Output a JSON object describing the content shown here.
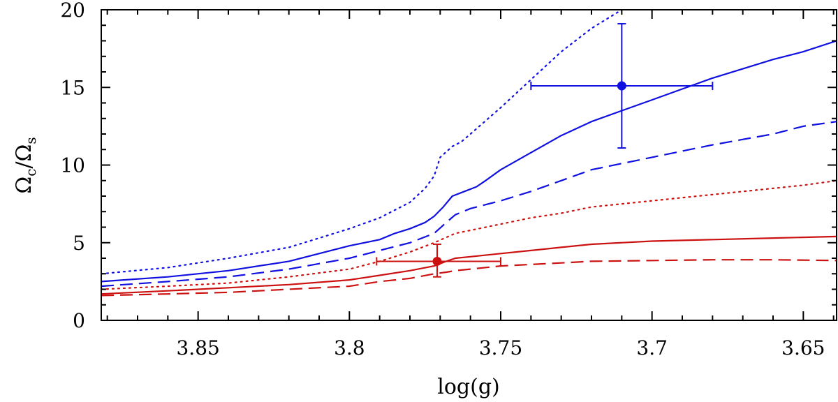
{
  "chart_data": {
    "type": "line",
    "title": "",
    "xlabel": "log(g)",
    "ylabel": "Ω_c/Ω_s",
    "ylabel_parts": {
      "num": "Ω",
      "num_sub": "c",
      "slash": "/",
      "den": "Ω",
      "den_sub": "s"
    },
    "xlim": [
      3.882,
      3.639
    ],
    "ylim": [
      0,
      20
    ],
    "x_ticks": [
      3.85,
      3.8,
      3.75,
      3.7,
      3.65
    ],
    "x_tick_labels": [
      "3.85",
      "3.8",
      "3.75",
      "3.7",
      "3.65"
    ],
    "y_ticks": [
      0,
      5,
      10,
      15,
      20
    ],
    "y_tick_labels": [
      "0",
      "5",
      "10",
      "15",
      "20"
    ],
    "grid": false,
    "colors": {
      "blue": "#1010e0",
      "red": "#cc1111",
      "axis": "#000000"
    },
    "series": [
      {
        "name": "blue-dotted",
        "color": "#1010e0",
        "style": "dotted",
        "x": [
          3.882,
          3.86,
          3.84,
          3.82,
          3.81,
          3.8,
          3.79,
          3.78,
          3.775,
          3.772,
          3.77,
          3.766,
          3.763,
          3.76,
          3.75,
          3.74,
          3.73,
          3.72,
          3.71
        ],
        "y": [
          3.0,
          3.4,
          4.0,
          4.7,
          5.3,
          5.9,
          6.6,
          7.6,
          8.5,
          9.3,
          10.5,
          11.2,
          11.5,
          12.0,
          13.7,
          15.5,
          17.3,
          18.8,
          20.0
        ]
      },
      {
        "name": "blue-solid",
        "color": "#1010e0",
        "style": "solid",
        "x": [
          3.882,
          3.86,
          3.84,
          3.82,
          3.81,
          3.8,
          3.79,
          3.785,
          3.78,
          3.775,
          3.772,
          3.769,
          3.766,
          3.762,
          3.758,
          3.755,
          3.75,
          3.74,
          3.73,
          3.72,
          3.71,
          3.7,
          3.69,
          3.68,
          3.67,
          3.66,
          3.65,
          3.639
        ],
        "y": [
          2.5,
          2.8,
          3.2,
          3.8,
          4.3,
          4.8,
          5.2,
          5.6,
          5.9,
          6.3,
          6.7,
          7.3,
          8.0,
          8.3,
          8.6,
          9.0,
          9.7,
          10.8,
          11.9,
          12.8,
          13.5,
          14.2,
          14.9,
          15.6,
          16.2,
          16.8,
          17.3,
          18.0
        ]
      },
      {
        "name": "blue-dashed",
        "color": "#1010e0",
        "style": "dashed",
        "x": [
          3.882,
          3.86,
          3.84,
          3.82,
          3.8,
          3.79,
          3.78,
          3.772,
          3.768,
          3.765,
          3.76,
          3.75,
          3.74,
          3.73,
          3.72,
          3.7,
          3.68,
          3.66,
          3.65,
          3.639
        ],
        "y": [
          2.2,
          2.5,
          2.8,
          3.3,
          4.0,
          4.5,
          5.0,
          5.6,
          6.3,
          6.8,
          7.2,
          7.7,
          8.3,
          9.0,
          9.7,
          10.5,
          11.3,
          12.0,
          12.5,
          12.8
        ]
      },
      {
        "name": "red-dotted",
        "color": "#cc1111",
        "style": "dotted",
        "x": [
          3.882,
          3.86,
          3.84,
          3.82,
          3.8,
          3.79,
          3.78,
          3.772,
          3.765,
          3.76,
          3.75,
          3.74,
          3.73,
          3.72,
          3.7,
          3.68,
          3.66,
          3.65,
          3.639
        ],
        "y": [
          2.0,
          2.2,
          2.4,
          2.8,
          3.3,
          3.8,
          4.4,
          5.0,
          5.6,
          5.8,
          6.2,
          6.6,
          6.9,
          7.3,
          7.7,
          8.1,
          8.5,
          8.7,
          9.0
        ]
      },
      {
        "name": "red-solid",
        "color": "#cc1111",
        "style": "solid",
        "x": [
          3.882,
          3.86,
          3.84,
          3.82,
          3.8,
          3.79,
          3.78,
          3.772,
          3.768,
          3.765,
          3.76,
          3.75,
          3.74,
          3.73,
          3.72,
          3.7,
          3.68,
          3.66,
          3.639
        ],
        "y": [
          1.7,
          1.9,
          2.1,
          2.3,
          2.6,
          2.9,
          3.2,
          3.5,
          3.8,
          4.0,
          4.1,
          4.3,
          4.5,
          4.7,
          4.9,
          5.1,
          5.2,
          5.3,
          5.4
        ]
      },
      {
        "name": "red-dashed",
        "color": "#cc1111",
        "style": "dashed",
        "x": [
          3.882,
          3.86,
          3.84,
          3.82,
          3.8,
          3.79,
          3.78,
          3.772,
          3.768,
          3.765,
          3.76,
          3.75,
          3.74,
          3.73,
          3.72,
          3.7,
          3.68,
          3.66,
          3.639
        ],
        "y": [
          1.6,
          1.7,
          1.8,
          2.0,
          2.2,
          2.5,
          2.7,
          3.0,
          3.1,
          3.2,
          3.3,
          3.5,
          3.6,
          3.7,
          3.8,
          3.85,
          3.9,
          3.9,
          3.85
        ]
      }
    ],
    "points": [
      {
        "name": "blue-measurement",
        "color": "#1010e0",
        "x": 3.71,
        "y": 15.1,
        "xerr": [
          3.74,
          3.68
        ],
        "yerr": [
          11.1,
          19.1
        ]
      },
      {
        "name": "red-measurement",
        "color": "#cc1111",
        "x": 3.771,
        "y": 3.8,
        "xerr": [
          3.791,
          3.75
        ],
        "yerr": [
          2.8,
          4.9
        ]
      }
    ]
  }
}
